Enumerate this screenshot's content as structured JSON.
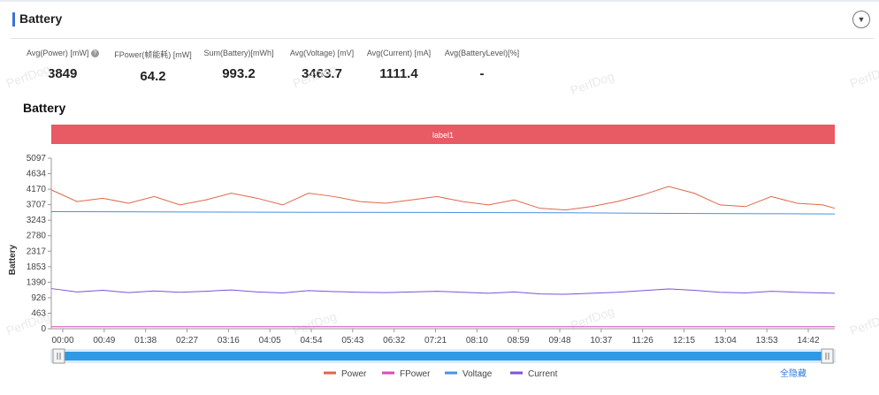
{
  "header": {
    "title": "Battery",
    "collapse_icon": "chevron-down-icon"
  },
  "stats": [
    {
      "label": "Avg(Power) [mW]",
      "value": "3849",
      "help": true
    },
    {
      "label": "FPower(帧能耗) [mW]",
      "value": "64.2"
    },
    {
      "label": "Sum(Battery)[mWh]",
      "value": "993.2"
    },
    {
      "label": "Avg(Voltage) [mV]",
      "value": "3463.7"
    },
    {
      "label": "Avg(Current) [mA]",
      "value": "1111.4"
    },
    {
      "label": "Avg(BatteryLevel)[%]",
      "value": "-"
    }
  ],
  "watermark": "PerfDog",
  "chart_data": {
    "type": "line",
    "title": "Battery",
    "ylabel": "Battery",
    "label_band": "label1",
    "ylim": [
      0,
      5097
    ],
    "yticks": [
      0,
      463,
      926,
      1390,
      1853,
      2317,
      2780,
      3243,
      3707,
      4170,
      4634,
      5097
    ],
    "xticks": [
      "00:00",
      "00:49",
      "01:38",
      "02:27",
      "03:16",
      "04:05",
      "04:54",
      "05:43",
      "06:32",
      "07:21",
      "08:10",
      "08:59",
      "09:48",
      "10:37",
      "11:26",
      "12:15",
      "13:04",
      "13:53",
      "14:42"
    ],
    "x_range_seconds": [
      0,
      914
    ],
    "series": [
      {
        "name": "Power",
        "color": "#e0664a",
        "x": [
          0,
          30,
          60,
          90,
          120,
          150,
          180,
          210,
          240,
          270,
          300,
          330,
          360,
          390,
          420,
          450,
          480,
          510,
          540,
          570,
          600,
          630,
          660,
          690,
          720,
          750,
          780,
          810,
          840,
          870,
          900,
          914
        ],
        "values": [
          4150,
          3800,
          3900,
          3750,
          3950,
          3700,
          3850,
          4050,
          3900,
          3700,
          4050,
          3950,
          3800,
          3750,
          3850,
          3950,
          3800,
          3700,
          3850,
          3600,
          3550,
          3650,
          3800,
          4000,
          4250,
          4050,
          3700,
          3650,
          3950,
          3750,
          3700,
          3600
        ]
      },
      {
        "name": "FPower",
        "color": "#d94bb5",
        "x": [
          0,
          914
        ],
        "values": [
          60,
          60
        ]
      },
      {
        "name": "Voltage",
        "color": "#4a90e2",
        "x": [
          0,
          150,
          300,
          450,
          600,
          700,
          800,
          914
        ],
        "values": [
          3500,
          3490,
          3480,
          3475,
          3465,
          3450,
          3440,
          3430
        ]
      },
      {
        "name": "Current",
        "color": "#7b52d9",
        "x": [
          0,
          30,
          60,
          90,
          120,
          150,
          180,
          210,
          240,
          270,
          300,
          330,
          360,
          390,
          420,
          450,
          480,
          510,
          540,
          570,
          600,
          630,
          660,
          690,
          720,
          750,
          780,
          810,
          840,
          870,
          900,
          914
        ],
        "values": [
          1200,
          1100,
          1150,
          1080,
          1130,
          1090,
          1120,
          1160,
          1100,
          1070,
          1140,
          1110,
          1090,
          1080,
          1100,
          1120,
          1090,
          1060,
          1100,
          1040,
          1030,
          1060,
          1090,
          1140,
          1190,
          1150,
          1090,
          1070,
          1120,
          1090,
          1070,
          1060
        ]
      }
    ],
    "legend_position": "bottom",
    "legend_extra": "全隐藏",
    "grid": false
  }
}
